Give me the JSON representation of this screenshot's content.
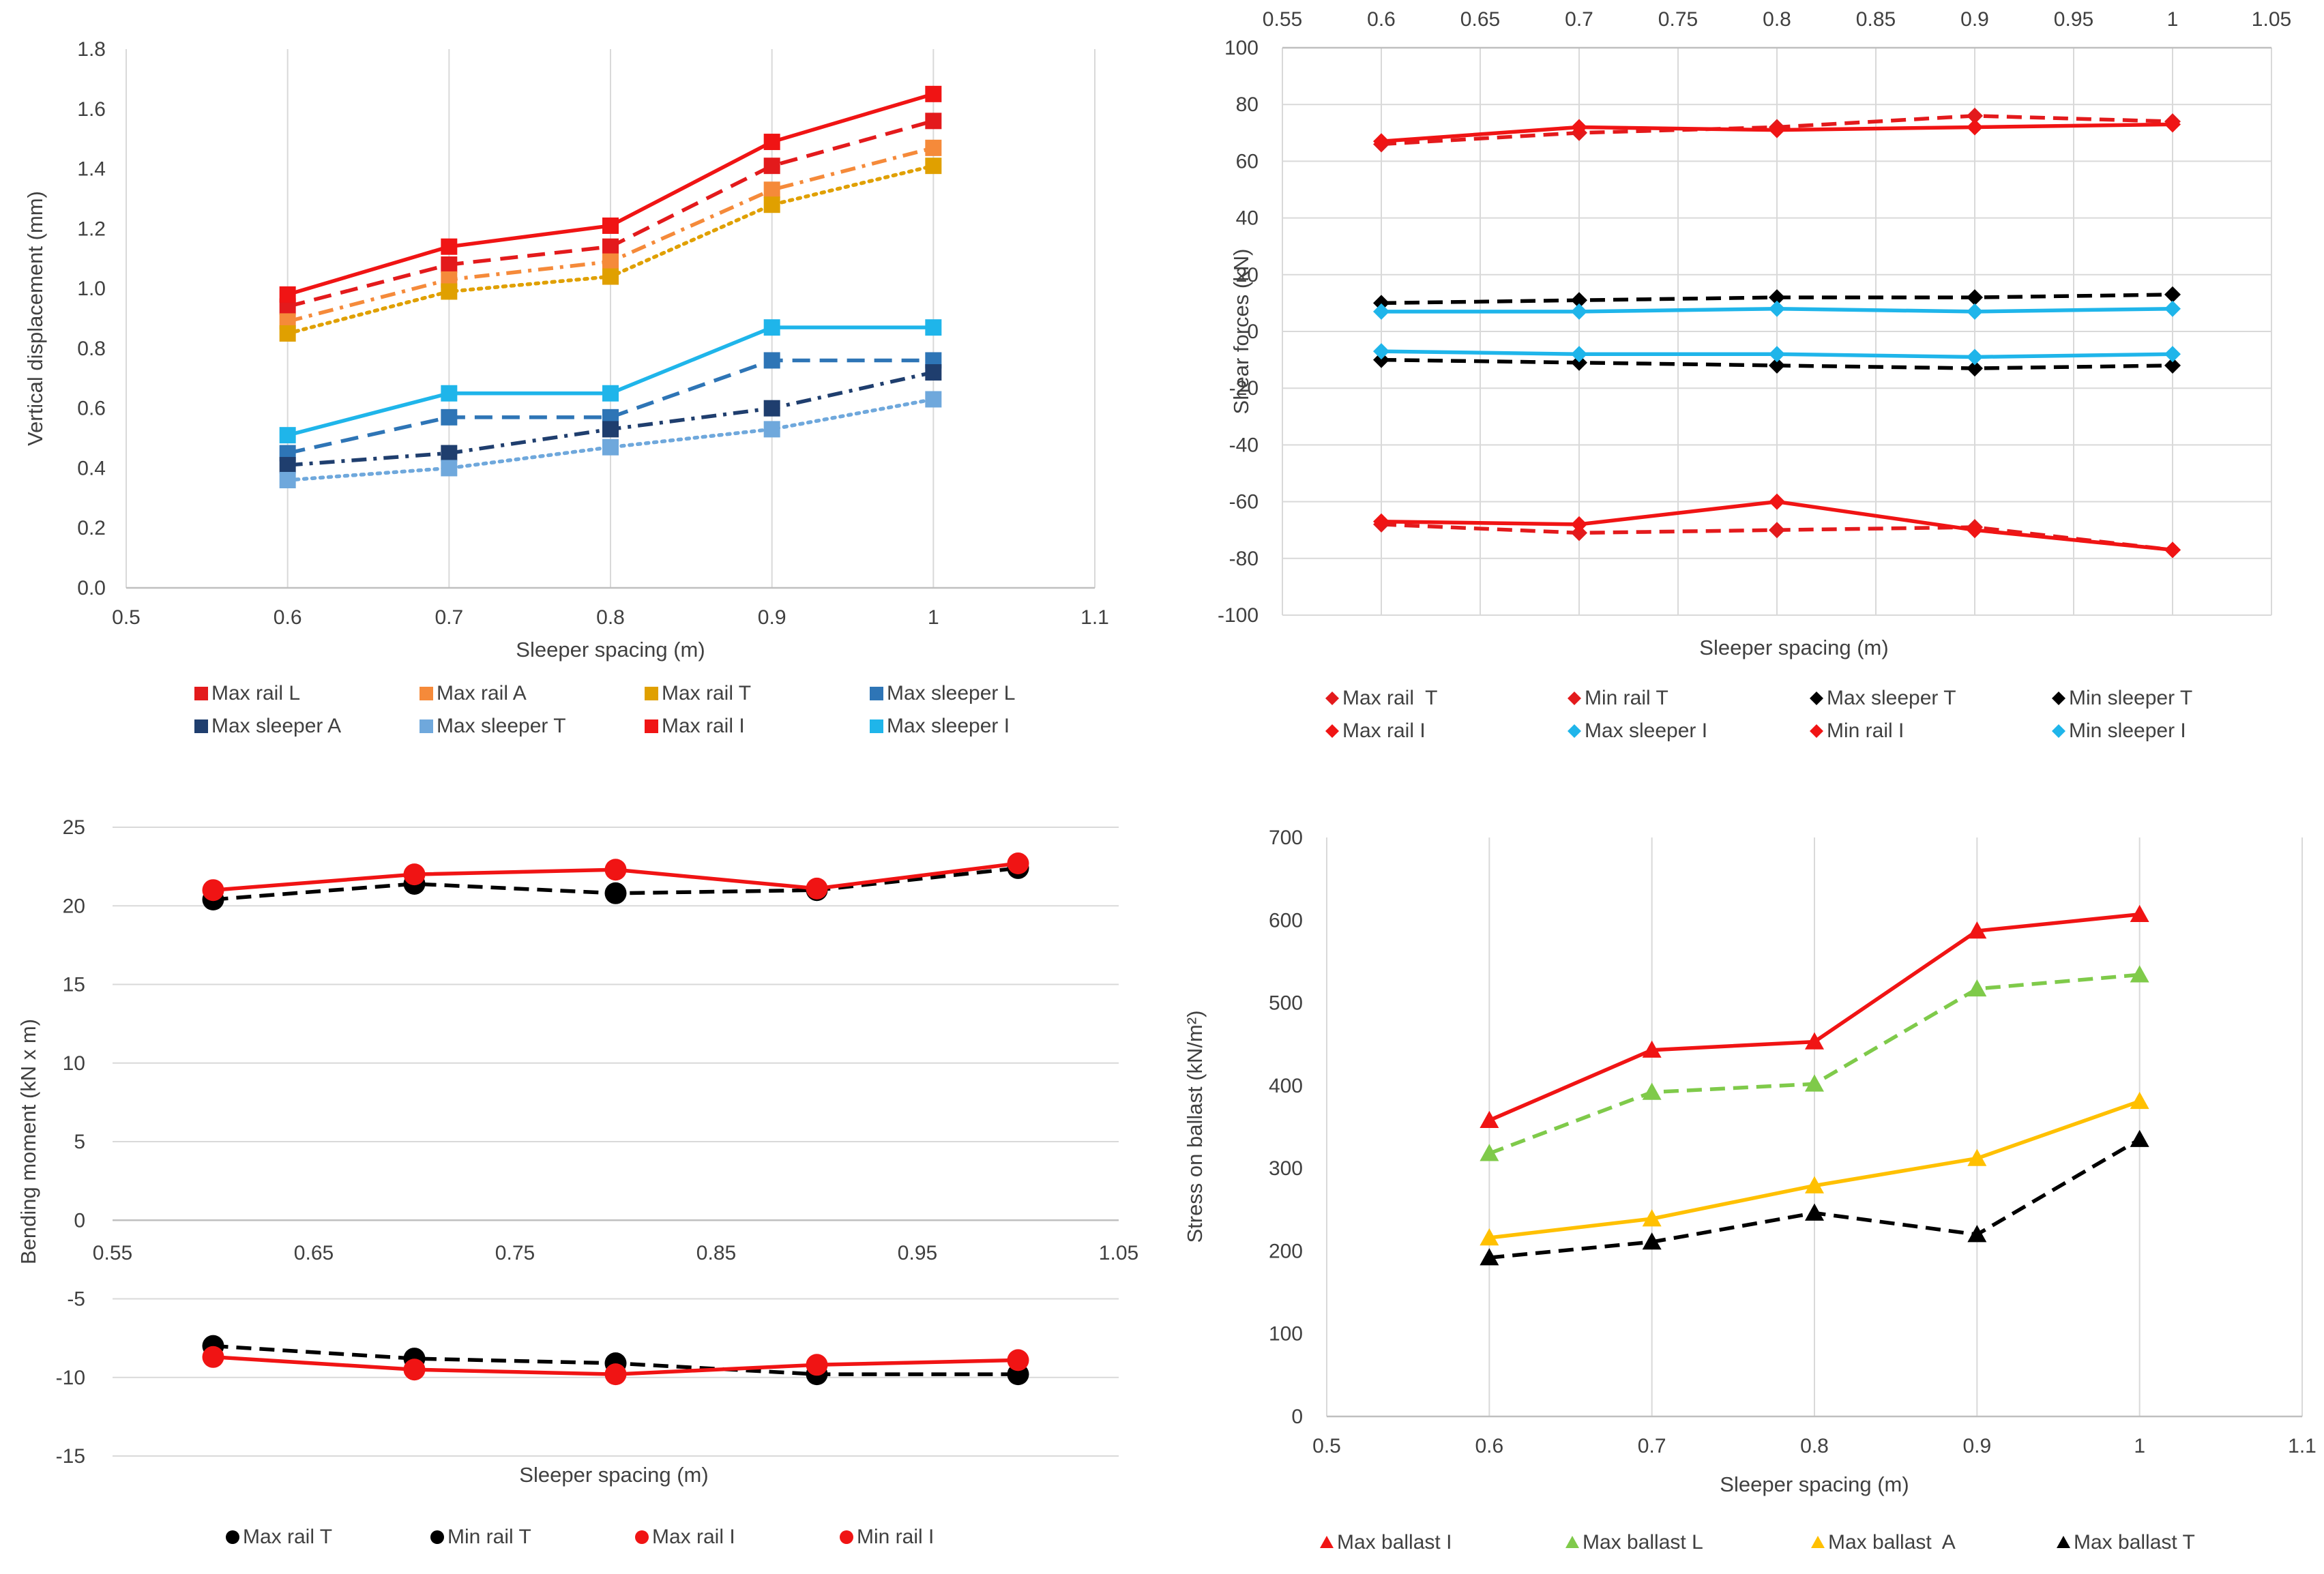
{
  "chart_data": [
    {
      "type": "line",
      "id": "disp",
      "title": "",
      "xlabel": "Sleeper spacing (m)",
      "ylabel": "Vertical displacement (mm)",
      "xlim": [
        0.5,
        1.1
      ],
      "ylim": [
        0.0,
        1.8
      ],
      "xticks": [
        0.5,
        0.6,
        0.7,
        0.8,
        0.9,
        1,
        1.1
      ],
      "xtick_labels": [
        "0.5",
        "0.6",
        "0.7",
        "0.8",
        "0.9",
        "1",
        "1.1"
      ],
      "yticks": [
        0,
        0.2,
        0.4,
        0.6,
        0.8,
        1,
        1.2,
        1.4,
        1.6,
        1.8
      ],
      "ytick_labels": [
        "0.0",
        "0.2",
        "0.4",
        "0.6",
        "0.8",
        "1.0",
        "1.2",
        "1.4",
        "1.6",
        "1.8"
      ],
      "x_axis_position": "bottom",
      "grid": "vertical",
      "legend_position": "bottom",
      "series": [
        {
          "name": "Max rail L",
          "color": "#E31A1C",
          "dash": "long-dash",
          "marker": "square",
          "x": [
            0.6,
            0.7,
            0.8,
            0.9,
            1
          ],
          "y": [
            0.94,
            1.08,
            1.14,
            1.41,
            1.56
          ]
        },
        {
          "name": "Max rail A",
          "color": "#F58A3A",
          "dash": "dash-dot",
          "marker": "square",
          "x": [
            0.6,
            0.7,
            0.8,
            0.9,
            1
          ],
          "y": [
            0.89,
            1.03,
            1.09,
            1.33,
            1.47
          ]
        },
        {
          "name": "Max rail T",
          "color": "#E0A000",
          "dash": "dotted",
          "marker": "square",
          "x": [
            0.6,
            0.7,
            0.8,
            0.9,
            1
          ],
          "y": [
            0.85,
            0.99,
            1.04,
            1.28,
            1.41
          ]
        },
        {
          "name": "Max sleeper L",
          "color": "#2E75B6",
          "dash": "long-dash",
          "marker": "square",
          "x": [
            0.6,
            0.7,
            0.8,
            0.9,
            1
          ],
          "y": [
            0.45,
            0.57,
            0.57,
            0.76,
            0.76
          ]
        },
        {
          "name": "Max sleeper A",
          "color": "#1F3E6E",
          "dash": "dash-dot",
          "marker": "square",
          "x": [
            0.6,
            0.7,
            0.8,
            0.9,
            1
          ],
          "y": [
            0.41,
            0.45,
            0.53,
            0.6,
            0.72
          ]
        },
        {
          "name": "Max sleeper T",
          "color": "#6FA8DC",
          "dash": "dotted",
          "marker": "square",
          "x": [
            0.6,
            0.7,
            0.8,
            0.9,
            1
          ],
          "y": [
            0.36,
            0.4,
            0.47,
            0.53,
            0.63
          ]
        },
        {
          "name": "Max rail I",
          "color": "#F01414",
          "dash": "solid",
          "marker": "square",
          "x": [
            0.6,
            0.7,
            0.8,
            0.9,
            1
          ],
          "y": [
            0.98,
            1.14,
            1.21,
            1.49,
            1.65
          ]
        },
        {
          "name": "Max sleeper I",
          "color": "#1FB5EA",
          "dash": "solid",
          "marker": "square",
          "x": [
            0.6,
            0.7,
            0.8,
            0.9,
            1
          ],
          "y": [
            0.51,
            0.65,
            0.65,
            0.87,
            0.87
          ]
        }
      ]
    },
    {
      "type": "line",
      "id": "shear",
      "title": "",
      "xlabel": "Sleeper spacing (m)",
      "ylabel": "Shear forces (kN)",
      "xlim": [
        0.55,
        1.05
      ],
      "ylim": [
        -100,
        100
      ],
      "xticks": [
        0.55,
        0.6,
        0.65,
        0.7,
        0.75,
        0.8,
        0.85,
        0.9,
        0.95,
        1,
        1.05
      ],
      "xtick_labels": [
        "0.55",
        "0.6",
        "0.65",
        "0.7",
        "0.75",
        "0.8",
        "0.85",
        "0.9",
        "0.95",
        "1",
        "1.05"
      ],
      "yticks": [
        -100,
        -80,
        -60,
        -40,
        -20,
        0,
        20,
        40,
        60,
        80,
        100
      ],
      "ytick_labels": [
        "-100",
        "-80",
        "-60",
        "-40",
        "-20",
        "0",
        "20",
        "40",
        "60",
        "80",
        "100"
      ],
      "x_axis_position": "top",
      "grid": "both",
      "legend_position": "bottom",
      "series": [
        {
          "name": "Max rail  T",
          "color": "#E31A1C",
          "dash": "dashed",
          "marker": "diamond",
          "x": [
            0.6,
            0.7,
            0.8,
            0.9,
            1
          ],
          "y": [
            66,
            70,
            72,
            76,
            74
          ]
        },
        {
          "name": "Min rail T",
          "color": "#E31A1C",
          "dash": "dashed",
          "marker": "diamond",
          "x": [
            0.6,
            0.7,
            0.8,
            0.9,
            1
          ],
          "y": [
            -68,
            -71,
            -70,
            -69,
            -77
          ]
        },
        {
          "name": "Max sleeper T",
          "color": "#000000",
          "dash": "dashed",
          "marker": "diamond",
          "x": [
            0.6,
            0.7,
            0.8,
            0.9,
            1
          ],
          "y": [
            10,
            11,
            12,
            12,
            13
          ]
        },
        {
          "name": "Min sleeper T",
          "color": "#000000",
          "dash": "dashed",
          "marker": "diamond",
          "x": [
            0.6,
            0.7,
            0.8,
            0.9,
            1
          ],
          "y": [
            -10,
            -11,
            -12,
            -13,
            -12
          ]
        },
        {
          "name": "Max rail I",
          "color": "#F01414",
          "dash": "solid",
          "marker": "diamond",
          "x": [
            0.6,
            0.7,
            0.8,
            0.9,
            1
          ],
          "y": [
            67,
            72,
            71,
            72,
            73
          ]
        },
        {
          "name": "Max sleeper I",
          "color": "#1FB5EA",
          "dash": "solid",
          "marker": "diamond",
          "x": [
            0.6,
            0.7,
            0.8,
            0.9,
            1
          ],
          "y": [
            7,
            7,
            8,
            7,
            8
          ]
        },
        {
          "name": "Min rail I",
          "color": "#F01414",
          "dash": "solid",
          "marker": "diamond",
          "x": [
            0.6,
            0.7,
            0.8,
            0.9,
            1
          ],
          "y": [
            -67,
            -68,
            -60,
            -70,
            -77
          ]
        },
        {
          "name": "Min sleeper I",
          "color": "#1FB5EA",
          "dash": "solid",
          "marker": "diamond",
          "x": [
            0.6,
            0.7,
            0.8,
            0.9,
            1
          ],
          "y": [
            -7,
            -8,
            -8,
            -9,
            -8
          ]
        }
      ]
    },
    {
      "type": "line",
      "id": "moment",
      "title": "",
      "xlabel": "Sleeper spacing (m)",
      "ylabel": "Bending moment (kN x m)",
      "xlim": [
        0.55,
        1.05
      ],
      "ylim": [
        -15,
        25
      ],
      "xticks": [
        0.55,
        0.65,
        0.75,
        0.85,
        0.95,
        1.05
      ],
      "xtick_labels": [
        "0.55",
        "0.65",
        "0.75",
        "0.85",
        "0.95",
        "1.05"
      ],
      "yticks": [
        -15,
        -10,
        -5,
        0,
        5,
        10,
        15,
        20,
        25
      ],
      "ytick_labels": [
        "-15",
        "-10",
        "-5",
        "0",
        "5",
        "10",
        "15",
        "20",
        "25"
      ],
      "x_axis_position": "zero",
      "grid": "horizontal",
      "legend_position": "bottom",
      "series": [
        {
          "name": "Max rail T",
          "color": "#000000",
          "dash": "dashed",
          "marker": "circle",
          "x": [
            0.6,
            0.7,
            0.8,
            0.9,
            1
          ],
          "y": [
            20.4,
            21.4,
            20.8,
            21.0,
            22.4
          ]
        },
        {
          "name": "Min rail T",
          "color": "#000000",
          "dash": "dashed",
          "marker": "circle",
          "x": [
            0.6,
            0.7,
            0.8,
            0.9,
            1
          ],
          "y": [
            -8.0,
            -8.8,
            -9.1,
            -9.8,
            -9.8
          ]
        },
        {
          "name": "Max rail I",
          "color": "#F01414",
          "dash": "solid",
          "marker": "circle",
          "x": [
            0.6,
            0.7,
            0.8,
            0.9,
            1
          ],
          "y": [
            21.0,
            22.0,
            22.3,
            21.1,
            22.7
          ]
        },
        {
          "name": "Min rail I",
          "color": "#F01414",
          "dash": "solid",
          "marker": "circle",
          "x": [
            0.6,
            0.7,
            0.8,
            0.9,
            1
          ],
          "y": [
            -8.7,
            -9.5,
            -9.8,
            -9.2,
            -8.9
          ]
        }
      ]
    },
    {
      "type": "line",
      "id": "stress",
      "title": "",
      "xlabel": "Sleeper spacing (m)",
      "ylabel": "Stress on ballast (kN/m²)",
      "xlim": [
        0.5,
        1.1
      ],
      "ylim": [
        0,
        700
      ],
      "xticks": [
        0.5,
        0.6,
        0.7,
        0.8,
        0.9,
        1,
        1.1
      ],
      "xtick_labels": [
        "0.5",
        "0.6",
        "0.7",
        "0.8",
        "0.9",
        "1",
        "1.1"
      ],
      "yticks": [
        0,
        100,
        200,
        300,
        400,
        500,
        600,
        700
      ],
      "ytick_labels": [
        "0",
        "100",
        "200",
        "300",
        "400",
        "500",
        "600",
        "700"
      ],
      "x_axis_position": "bottom",
      "grid": "vertical",
      "legend_position": "bottom",
      "series": [
        {
          "name": "Max ballast I",
          "color": "#F01414",
          "dash": "solid",
          "marker": "triangle",
          "x": [
            0.6,
            0.7,
            0.8,
            0.9,
            1
          ],
          "y": [
            358,
            443,
            453,
            587,
            607
          ]
        },
        {
          "name": "Max ballast L",
          "color": "#7FCA4A",
          "dash": "dashed",
          "marker": "triangle",
          "x": [
            0.6,
            0.7,
            0.8,
            0.9,
            1
          ],
          "y": [
            318,
            392,
            402,
            517,
            534
          ]
        },
        {
          "name": "Max ballast  A",
          "color": "#FFC000",
          "dash": "solid",
          "marker": "triangle",
          "x": [
            0.6,
            0.7,
            0.8,
            0.9,
            1
          ],
          "y": [
            216,
            239,
            279,
            312,
            381
          ]
        },
        {
          "name": "Max ballast T",
          "color": "#000000",
          "dash": "dashed",
          "marker": "triangle",
          "x": [
            0.6,
            0.7,
            0.8,
            0.9,
            1
          ],
          "y": [
            192,
            211,
            246,
            220,
            335
          ]
        }
      ]
    }
  ]
}
